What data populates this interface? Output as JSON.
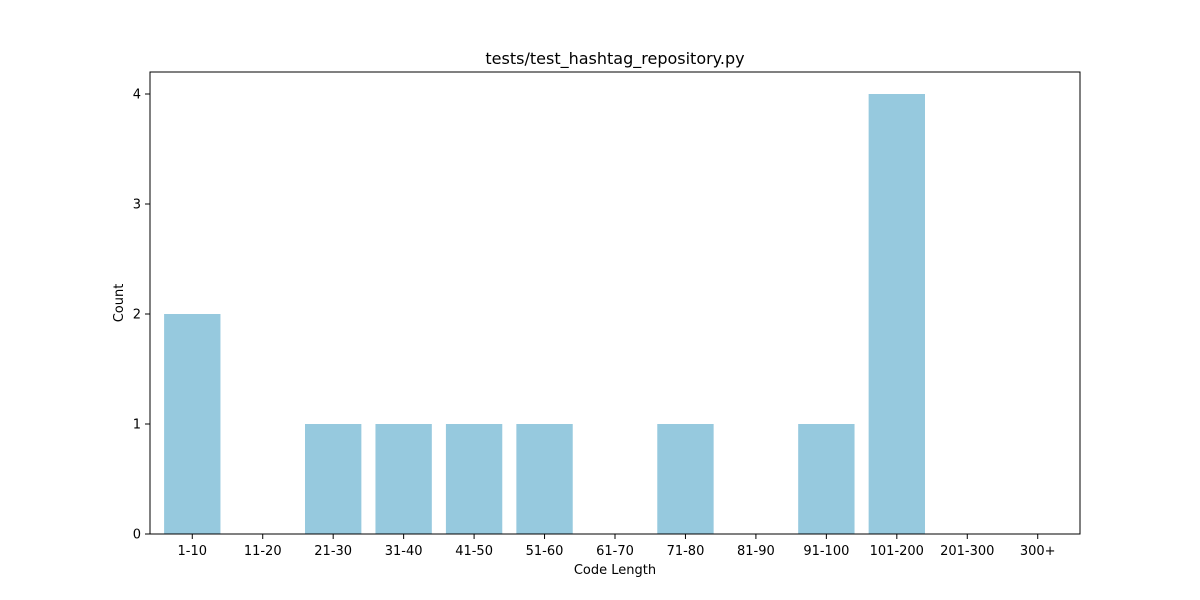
{
  "chart_data": {
    "type": "bar",
    "title": "tests/test_hashtag_repository.py",
    "xlabel": "Code Length",
    "ylabel": "Count",
    "categories": [
      "1-10",
      "11-20",
      "21-30",
      "31-40",
      "41-50",
      "51-60",
      "61-70",
      "71-80",
      "81-90",
      "91-100",
      "101-200",
      "201-300",
      "300+"
    ],
    "values": [
      2,
      0,
      1,
      1,
      1,
      1,
      0,
      1,
      0,
      1,
      4,
      0,
      0
    ],
    "ylim": [
      0,
      4.2
    ],
    "yticks": [
      0,
      1,
      2,
      3,
      4
    ],
    "grid": false,
    "bar_color": "#96c9de"
  }
}
